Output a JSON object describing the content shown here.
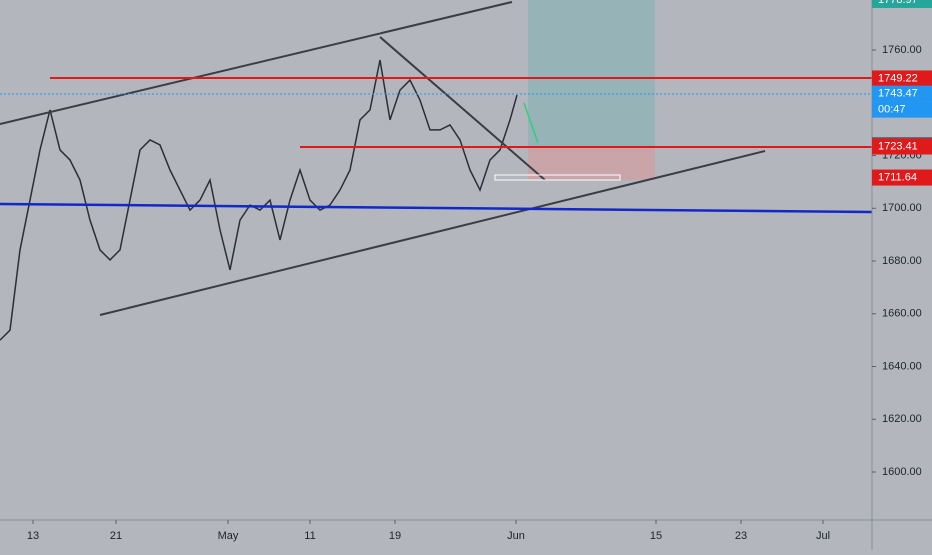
{
  "chart_data": {
    "type": "line",
    "x": [
      0,
      1,
      2,
      3,
      4,
      5,
      6,
      7,
      8,
      9,
      10,
      11,
      12,
      13,
      14,
      15,
      16,
      17,
      18,
      19,
      20,
      21,
      22,
      23,
      24,
      25,
      26,
      27,
      28,
      29,
      30,
      31,
      32,
      33,
      34,
      35,
      36,
      37,
      38,
      39,
      40,
      41,
      42,
      43,
      44,
      45,
      46,
      47,
      48,
      49,
      50,
      51,
      51.7
    ],
    "series": [
      {
        "name": null,
        "color": "#2a2e39",
        "values": [
          1650.0,
          1653.8,
          1684.2,
          1703.1,
          1722.1,
          1737.3,
          1722.1,
          1718.3,
          1710.7,
          1695.5,
          1684.2,
          1680.4,
          1684.2,
          1703.1,
          1722.1,
          1725.9,
          1724.0,
          1714.5,
          1706.9,
          1699.3,
          1703.1,
          1710.7,
          1691.8,
          1676.6,
          1695.5,
          1701.2,
          1699.3,
          1703.1,
          1688.0,
          1703.1,
          1714.5,
          1703.1,
          1699.3,
          1701.2,
          1706.9,
          1714.5,
          1733.5,
          1737.3,
          1756.2,
          1733.5,
          1744.8,
          1748.6,
          1741.0,
          1729.7,
          1729.7,
          1731.6,
          1725.9,
          1714.5,
          1706.9,
          1718.3,
          1722.1,
          1733.5,
          1742.9
        ]
      }
    ],
    "xlim": [
      0,
      87.2
    ],
    "xticks": [
      {
        "value": 3.3,
        "label": "13"
      },
      {
        "value": 11.6,
        "label": "21"
      },
      {
        "value": 22.8,
        "label": "May"
      },
      {
        "value": 31,
        "label": "11"
      },
      {
        "value": 39.5,
        "label": "19"
      },
      {
        "value": 51.6,
        "label": "Jun"
      },
      {
        "value": 65.6,
        "label": "15"
      },
      {
        "value": 74.1,
        "label": "23"
      },
      {
        "value": 82.3,
        "label": "Jul"
      }
    ],
    "ylim": [
      1581.8,
      1778.96
    ],
    "yticks": [
      {
        "value": 1600,
        "label": "1600.00"
      },
      {
        "value": 1620,
        "label": "1620.00"
      },
      {
        "value": 1640,
        "label": "1640.00"
      },
      {
        "value": 1660,
        "label": "1660.00"
      },
      {
        "value": 1680,
        "label": "1680.00"
      },
      {
        "value": 1700,
        "label": "1700.00"
      },
      {
        "value": 1720,
        "label": "1720.00"
      },
      {
        "value": 1740,
        "label": "1740.00"
      },
      {
        "value": 1760,
        "label": "1760.00"
      }
    ],
    "price_labels": [
      {
        "value": 1778.97,
        "label": "1778.97",
        "color": "#26a69a"
      },
      {
        "value": 1749.22,
        "label": "1749.22",
        "color": "#e0191b"
      },
      {
        "value": 1743.47,
        "label": "1743.47",
        "color": "#2196f3"
      },
      {
        "value": 1723.93,
        "label": "1723.93",
        "color": "#5d606b"
      },
      {
        "value": 1723.41,
        "label": "1723.41",
        "color": "#e0191b"
      },
      {
        "value": 1711.64,
        "label": "1711.64",
        "color": "#e0191b"
      }
    ],
    "countdown": "00:47"
  }
}
